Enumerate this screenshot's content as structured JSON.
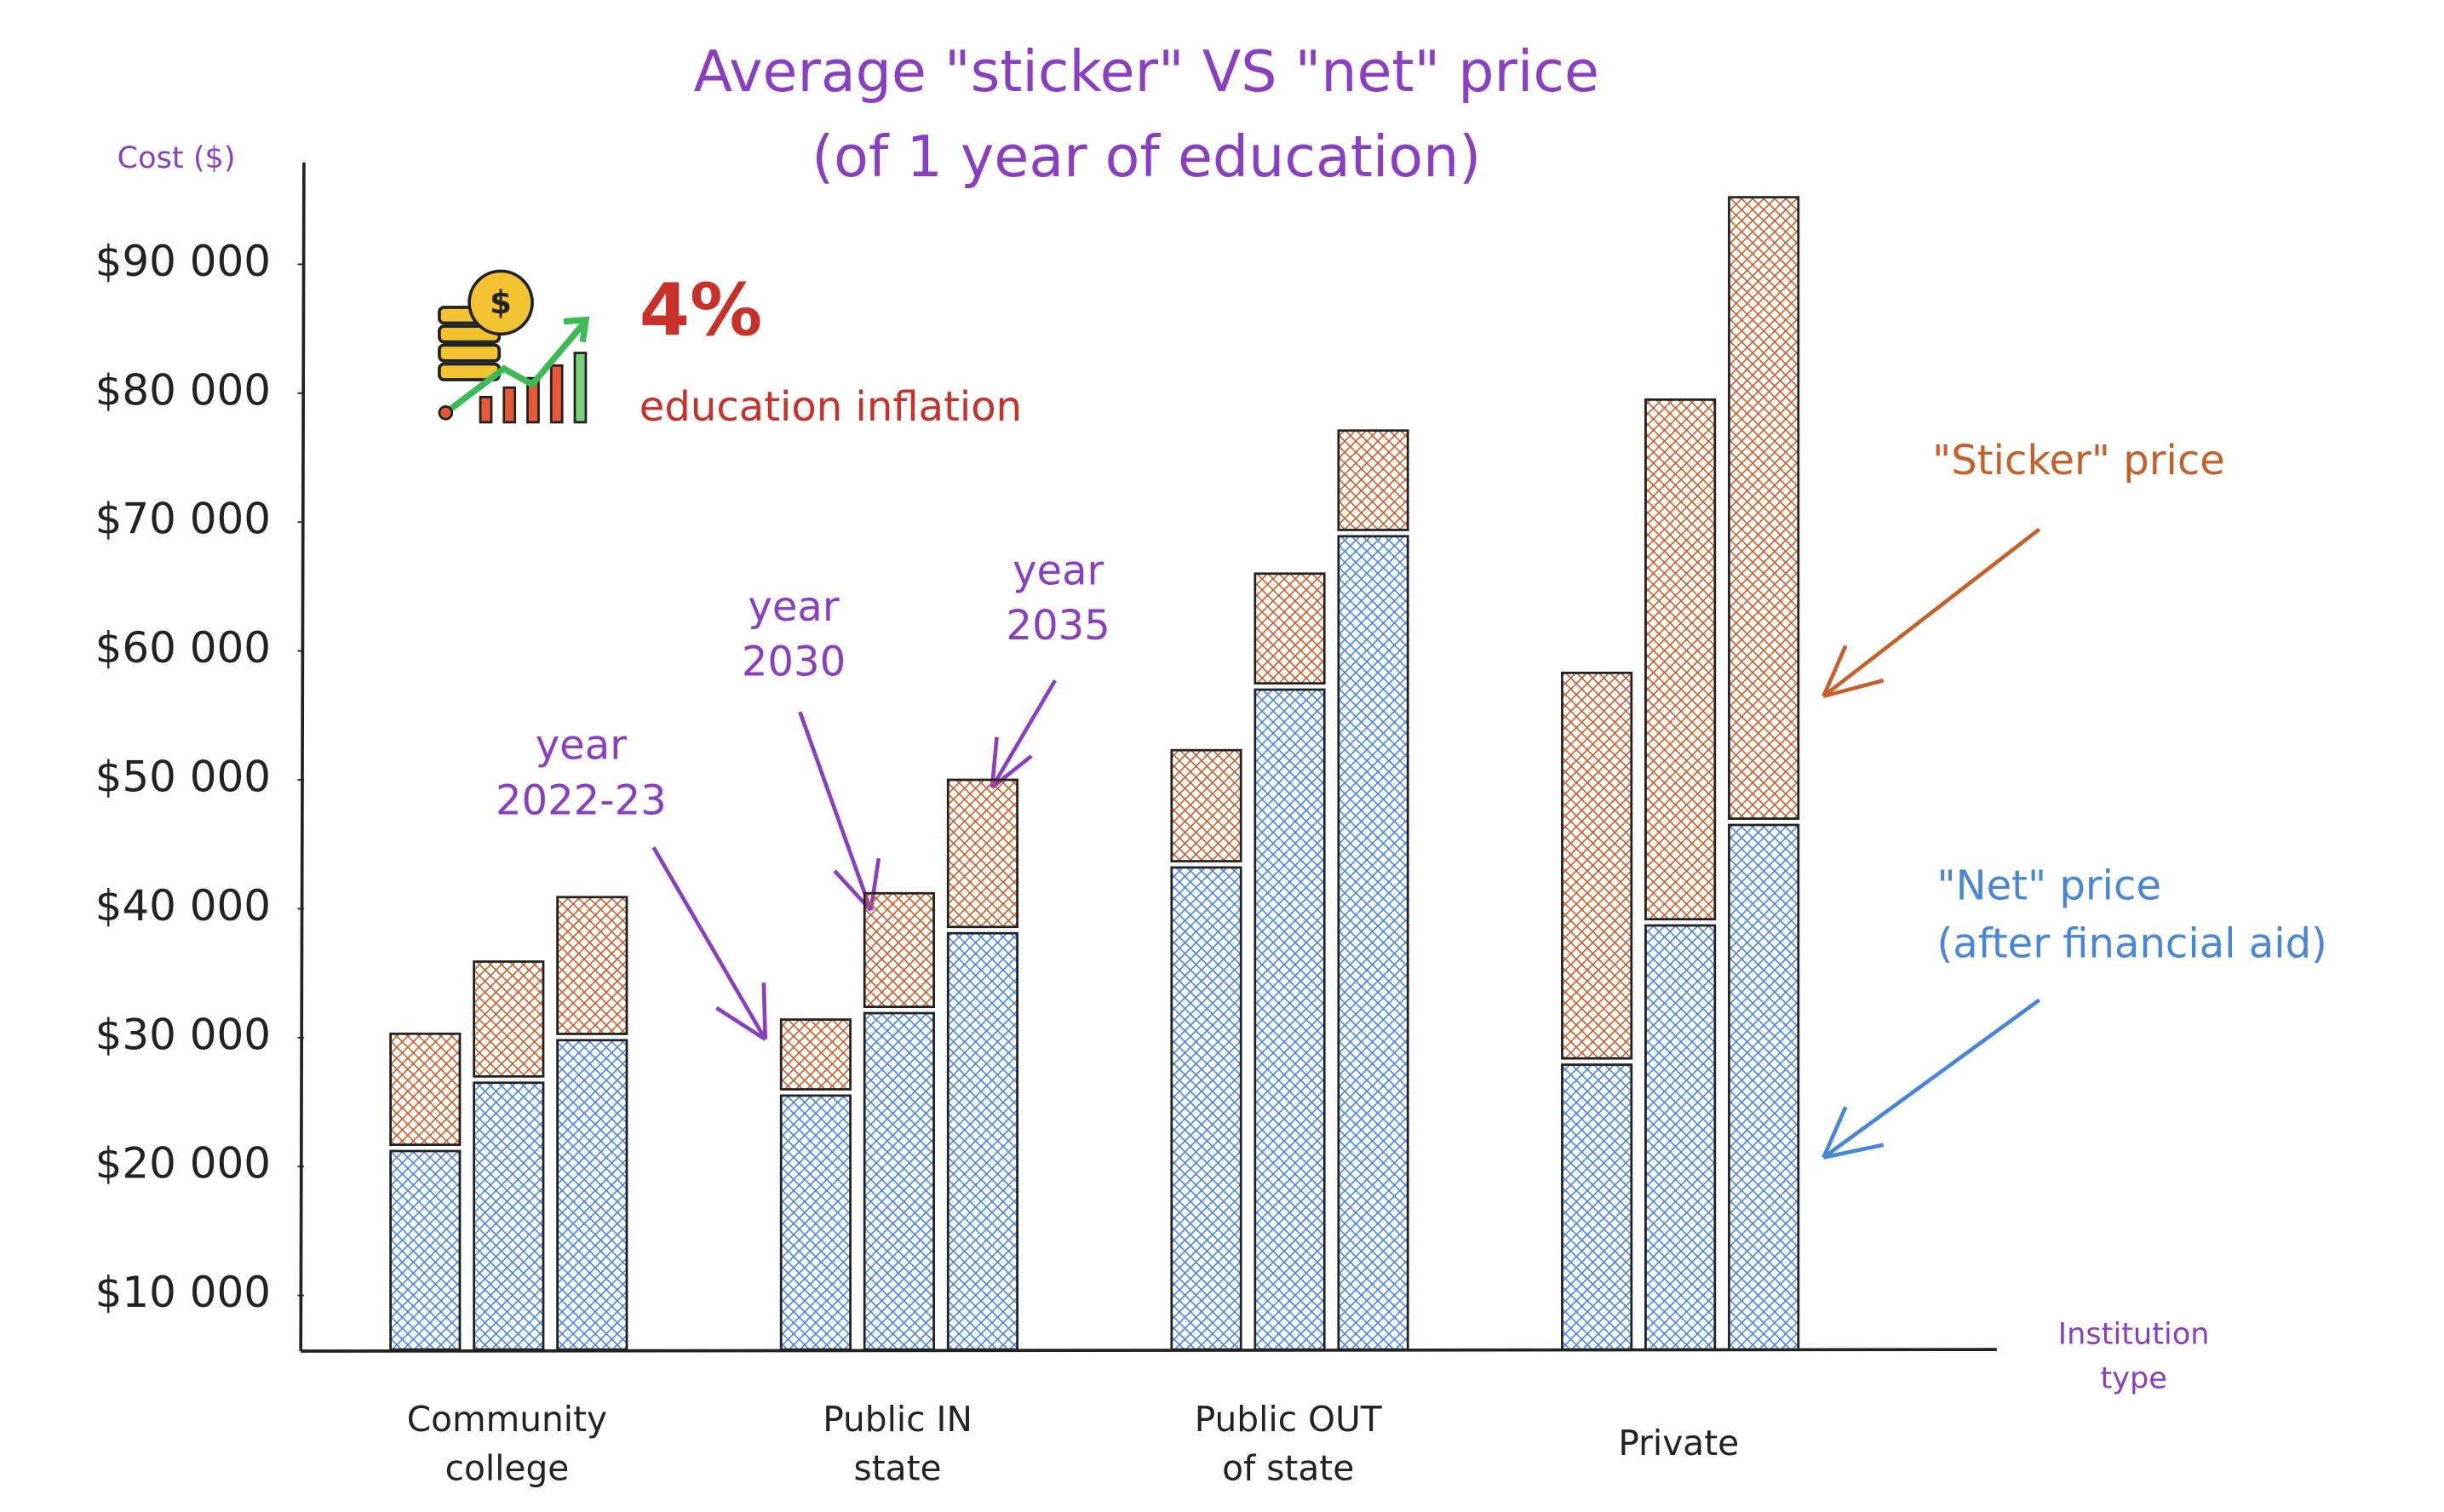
{
  "chart_data": {
    "type": "stacked-bar",
    "title": [
      "Average \"sticker\" VS \"net\" price",
      "(of 1 year of education)"
    ],
    "y_label": "Cost ($)",
    "x_label": "Institution type",
    "categories": [
      "Community\ncollege",
      "Public IN\nstate",
      "Public OUT\nof state",
      "Private"
    ],
    "series": [
      {
        "name": "\"Net\" price",
        "color": "#4a86d8",
        "values": [
          [
            15400,
            20700,
            24000
          ],
          [
            19700,
            26100,
            32300
          ],
          [
            37400,
            51200,
            63100
          ],
          [
            22100,
            32900,
            40700
          ]
        ]
      },
      {
        "name": "\"Sticker\" price",
        "color": "#c4602a",
        "values": [
          [
            9100,
            9400,
            11100
          ],
          [
            5900,
            9300,
            11900
          ],
          [
            9100,
            9000,
            8200
          ],
          [
            30400,
            40800,
            48700
          ]
        ]
      }
    ],
    "net_note": "(after financial aid)",
    "years": [
      "year\n2022-23",
      "year\n2030",
      "year\n2035"
    ],
    "inflation": {
      "value": "4%",
      "label": "education inflation"
    },
    "ylim": [
      5800,
      97900
    ],
    "yticks": [
      {
        "value": 10000,
        "label": "$10 000"
      },
      {
        "value": 20000,
        "label": "$20 000"
      },
      {
        "value": 30000,
        "label": "$30 000"
      },
      {
        "value": 40000,
        "label": "$40 000"
      },
      {
        "value": 50000,
        "label": "$50 000"
      },
      {
        "value": 60000,
        "label": "$60 000"
      },
      {
        "value": 70000,
        "label": "$70 000"
      },
      {
        "value": 80000,
        "label": "$80 000"
      },
      {
        "value": 90000,
        "label": "$90 000"
      }
    ]
  }
}
